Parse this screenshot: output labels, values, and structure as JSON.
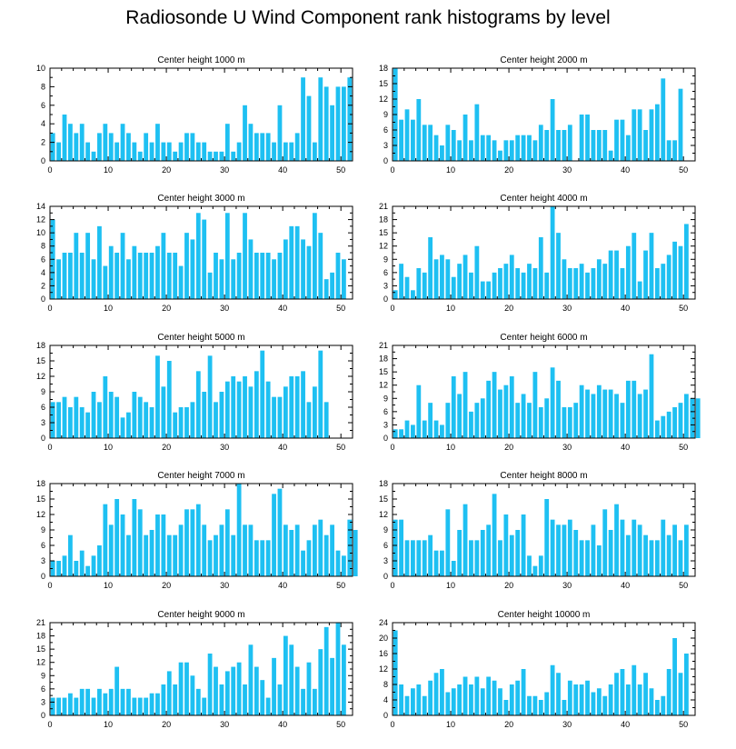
{
  "title": "Radiosonde U Wind Component rank histograms by level",
  "chart_data": [
    {
      "type": "bar",
      "title": "Center height 1000 m",
      "xlim": [
        0,
        52
      ],
      "ylim": [
        0,
        10
      ],
      "xticks": [
        0,
        10,
        20,
        30,
        40,
        50
      ],
      "yticks": [
        0,
        2,
        4,
        6,
        8,
        10
      ],
      "values": [
        3,
        2,
        5,
        4,
        3,
        4,
        2,
        1,
        3,
        4,
        3,
        2,
        4,
        3,
        2,
        1,
        3,
        2,
        4,
        2,
        2,
        1,
        2,
        3,
        3,
        2,
        2,
        1,
        1,
        1,
        4,
        1,
        2,
        6,
        4,
        3,
        3,
        3,
        2,
        6,
        2,
        2,
        3,
        9,
        7,
        2,
        9,
        8,
        6,
        8,
        8,
        9
      ]
    },
    {
      "type": "bar",
      "title": "Center height 2000 m",
      "xlim": [
        0,
        52
      ],
      "ylim": [
        0,
        18
      ],
      "xticks": [
        0,
        10,
        20,
        30,
        40,
        50
      ],
      "yticks": [
        0,
        3,
        6,
        9,
        12,
        15,
        18
      ],
      "values": [
        18,
        8,
        10,
        8,
        12,
        7,
        7,
        5,
        3,
        7,
        6,
        4,
        9,
        4,
        11,
        5,
        5,
        4,
        2,
        4,
        4,
        5,
        5,
        5,
        4,
        7,
        6,
        12,
        6,
        6,
        7,
        0,
        9,
        9,
        6,
        6,
        6,
        2,
        8,
        8,
        5,
        10,
        10,
        6,
        10,
        11,
        16,
        4,
        4,
        14
      ]
    },
    {
      "type": "bar",
      "title": "Center height 3000 m",
      "xlim": [
        0,
        52
      ],
      "ylim": [
        0,
        14
      ],
      "xticks": [
        0,
        10,
        20,
        30,
        40,
        50
      ],
      "yticks": [
        0,
        2,
        4,
        6,
        8,
        10,
        12,
        14
      ],
      "values": [
        12,
        6,
        7,
        7,
        10,
        7,
        10,
        6,
        11,
        5,
        8,
        7,
        10,
        6,
        8,
        7,
        7,
        7,
        8,
        10,
        7,
        7,
        5,
        10,
        9,
        13,
        12,
        4,
        7,
        6,
        13,
        6,
        7,
        13,
        9,
        7,
        7,
        7,
        6,
        7,
        9,
        11,
        11,
        9,
        8,
        13,
        10,
        3,
        4,
        7,
        6
      ]
    },
    {
      "type": "bar",
      "title": "Center height 4000 m",
      "xlim": [
        0,
        52
      ],
      "ylim": [
        0,
        21
      ],
      "xticks": [
        0,
        10,
        20,
        30,
        40,
        50
      ],
      "yticks": [
        0,
        3,
        6,
        9,
        12,
        15,
        18,
        21
      ],
      "values": [
        2,
        8,
        5,
        2,
        7,
        6,
        14,
        9,
        10,
        9,
        5,
        8,
        10,
        6,
        12,
        4,
        4,
        6,
        7,
        8,
        10,
        7,
        6,
        8,
        7,
        14,
        6,
        21,
        15,
        9,
        7,
        7,
        8,
        6,
        7,
        9,
        8,
        11,
        11,
        7,
        12,
        15,
        4,
        11,
        15,
        7,
        8,
        10,
        13,
        12,
        17
      ]
    },
    {
      "type": "bar",
      "title": "Center height 5000 m",
      "xlim": [
        0,
        52
      ],
      "ylim": [
        0,
        18
      ],
      "xticks": [
        0,
        10,
        20,
        30,
        40,
        50
      ],
      "yticks": [
        0,
        3,
        6,
        9,
        12,
        15,
        18
      ],
      "values": [
        7,
        7,
        8,
        6,
        8,
        6,
        5,
        9,
        7,
        12,
        9,
        8,
        4,
        5,
        9,
        8,
        7,
        6,
        16,
        10,
        15,
        5,
        6,
        6,
        7,
        13,
        9,
        16,
        7,
        9,
        11,
        12,
        11,
        12,
        10,
        13,
        17,
        11,
        8,
        8,
        10,
        12,
        12,
        13,
        7,
        10,
        17,
        7
      ]
    },
    {
      "type": "bar",
      "title": "Center height 6000 m",
      "xlim": [
        0,
        52
      ],
      "ylim": [
        0,
        21
      ],
      "xticks": [
        0,
        10,
        20,
        30,
        40,
        50
      ],
      "yticks": [
        0,
        3,
        6,
        9,
        12,
        15,
        18,
        21
      ],
      "values": [
        2,
        2,
        4,
        3,
        12,
        4,
        8,
        4,
        3,
        8,
        14,
        10,
        15,
        6,
        8,
        9,
        13,
        15,
        11,
        12,
        14,
        8,
        10,
        8,
        15,
        7,
        9,
        16,
        13,
        7,
        7,
        8,
        12,
        11,
        10,
        12,
        11,
        11,
        10,
        8,
        13,
        13,
        10,
        11,
        19,
        4,
        5,
        6,
        7,
        8,
        10,
        9,
        9
      ]
    },
    {
      "type": "bar",
      "title": "Center height 7000 m",
      "xlim": [
        0,
        52
      ],
      "ylim": [
        0,
        18
      ],
      "xticks": [
        0,
        10,
        20,
        30,
        40,
        50
      ],
      "yticks": [
        0,
        3,
        6,
        9,
        12,
        15,
        18
      ],
      "values": [
        3,
        3,
        4,
        8,
        3,
        5,
        2,
        4,
        6,
        14,
        10,
        15,
        12,
        8,
        15,
        13,
        8,
        9,
        12,
        12,
        8,
        8,
        10,
        13,
        13,
        14,
        10,
        7,
        8,
        10,
        13,
        8,
        18,
        10,
        10,
        7,
        7,
        7,
        16,
        17,
        10,
        9,
        10,
        5,
        7,
        10,
        11,
        8,
        10,
        5,
        4,
        11,
        9
      ]
    },
    {
      "type": "bar",
      "title": "Center height 8000 m",
      "xlim": [
        0,
        52
      ],
      "ylim": [
        0,
        18
      ],
      "xticks": [
        0,
        10,
        20,
        30,
        40,
        50
      ],
      "yticks": [
        0,
        3,
        6,
        9,
        12,
        15,
        18
      ],
      "values": [
        11,
        11,
        7,
        7,
        7,
        7,
        8,
        5,
        5,
        13,
        3,
        9,
        14,
        7,
        7,
        9,
        10,
        16,
        7,
        12,
        8,
        9,
        12,
        4,
        2,
        4,
        15,
        11,
        10,
        10,
        11,
        9,
        7,
        7,
        10,
        6,
        13,
        9,
        14,
        11,
        8,
        11,
        10,
        8,
        7,
        7,
        11,
        8,
        10,
        7,
        10
      ]
    },
    {
      "type": "bar",
      "title": "Center height 9000 m",
      "xlim": [
        0,
        52
      ],
      "ylim": [
        0,
        21
      ],
      "xticks": [
        0,
        10,
        20,
        30,
        40,
        50
      ],
      "yticks": [
        0,
        3,
        6,
        9,
        12,
        15,
        18,
        21
      ],
      "values": [
        4,
        4,
        4,
        5,
        4,
        6,
        6,
        4,
        6,
        5,
        6,
        11,
        6,
        6,
        4,
        4,
        4,
        5,
        5,
        7,
        10,
        7,
        12,
        12,
        9,
        6,
        4,
        14,
        11,
        7,
        10,
        11,
        12,
        7,
        16,
        11,
        8,
        4,
        13,
        7,
        18,
        16,
        11,
        6,
        12,
        6,
        15,
        20,
        13,
        21,
        16
      ]
    },
    {
      "type": "bar",
      "title": "Center height 10000 m",
      "xlim": [
        0,
        52
      ],
      "ylim": [
        0,
        24
      ],
      "xticks": [
        0,
        10,
        20,
        30,
        40,
        50
      ],
      "yticks": [
        0,
        4,
        8,
        12,
        16,
        20,
        24
      ],
      "values": [
        22,
        8,
        5,
        7,
        8,
        5,
        9,
        11,
        12,
        6,
        7,
        8,
        10,
        8,
        10,
        7,
        10,
        9,
        7,
        4,
        8,
        9,
        12,
        5,
        5,
        4,
        6,
        13,
        11,
        4,
        9,
        8,
        8,
        9,
        6,
        7,
        5,
        8,
        11,
        12,
        8,
        13,
        8,
        11,
        7,
        4,
        5,
        12,
        20,
        11,
        16
      ]
    }
  ]
}
